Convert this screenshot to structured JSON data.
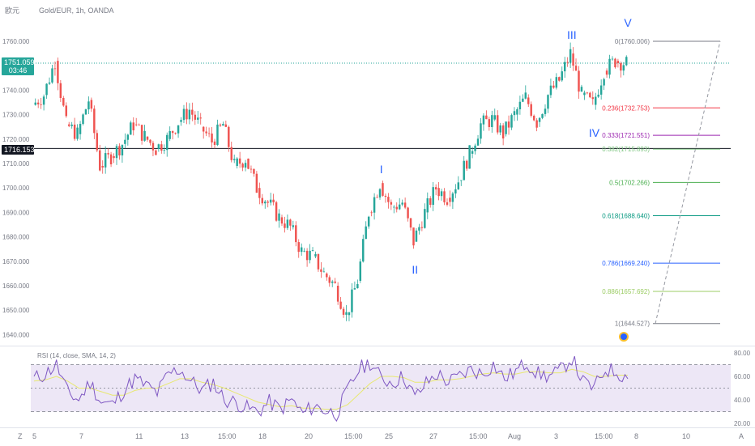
{
  "header": {
    "currency_label": "欧元",
    "symbol_text": "Gold/EUR, 1h, OANDA"
  },
  "colors": {
    "up": "#26a69a",
    "down": "#ef5350",
    "rsi_line": "#7e57c2",
    "rsi_ma": "#e8e870",
    "rsi_band": "#ede7f6",
    "current_price_bg": "#26a69a",
    "cursor_bg": "#131722"
  },
  "price_tags": {
    "current_price": "1751.059",
    "countdown": "03:46",
    "cursor_price": "1716.153"
  },
  "chart_data": [
    {
      "type": "candlestick",
      "title": "Gold/EUR, 1h, OANDA",
      "ylim": [
        1638,
        1770
      ],
      "y_ticks": [
        "1760.000",
        "1750.000",
        "1740.000",
        "1730.000",
        "1720.000",
        "1710.000",
        "1700.000",
        "1690.000",
        "1680.000",
        "1670.000",
        "1660.000",
        "1650.000",
        "1640.000"
      ],
      "x_ticks": [
        "5",
        "7",
        "11",
        "13",
        "15:00",
        "18",
        "20",
        "15:00",
        "25",
        "27",
        "15:00",
        "Aug",
        "3",
        "15:00",
        "8",
        "10"
      ],
      "series": [
        {
          "name": "close",
          "values": [
            1734,
            1738,
            1752,
            1726,
            1722,
            1736,
            1709,
            1713,
            1718,
            1726,
            1721,
            1716,
            1720,
            1727,
            1732,
            1725,
            1719,
            1726,
            1709,
            1712,
            1700,
            1694,
            1688,
            1684,
            1674,
            1672,
            1665,
            1660,
            1648,
            1662,
            1690,
            1702,
            1692,
            1694,
            1678,
            1690,
            1700,
            1696,
            1703,
            1714,
            1726,
            1728,
            1722,
            1730,
            1737,
            1727,
            1738,
            1744,
            1755,
            1738,
            1734,
            1748,
            1752,
            1751
          ]
        }
      ],
      "horizontal_lines": [
        {
          "label": "1716.153",
          "value": 1716.153
        }
      ],
      "wave_labels": [
        {
          "text": "I",
          "x_index": 31,
          "value": 1706
        },
        {
          "text": "II",
          "x_index": 34,
          "value": 1665
        },
        {
          "text": "III",
          "x_index": 48,
          "value": 1761
        },
        {
          "text": "IV",
          "x_index": 50,
          "value": 1721
        },
        {
          "text": "V",
          "x_index": 53,
          "value": 1766
        }
      ],
      "fibonacci": [
        {
          "label": "0(1760.006)",
          "value": 1760.006,
          "color": "#787b86"
        },
        {
          "label": "0.236(1732.753)",
          "value": 1732.753,
          "color": "#f23645"
        },
        {
          "label": "0.333(1721.551)",
          "value": 1721.551,
          "color": "#9c27b0"
        },
        {
          "label": "0.382(1715.893)",
          "value": 1715.893,
          "color": "#81c784"
        },
        {
          "label": "0.5(1702.266)",
          "value": 1702.266,
          "color": "#4caf50"
        },
        {
          "label": "0.618(1688.640)",
          "value": 1688.64,
          "color": "#089981"
        },
        {
          "label": "0.786(1669.240)",
          "value": 1669.24,
          "color": "#2962ff"
        },
        {
          "label": "0.886(1657.692)",
          "value": 1657.692,
          "color": "#9ccc65"
        },
        {
          "label": "1(1644.527)",
          "value": 1644.527,
          "color": "#787b86"
        }
      ]
    },
    {
      "type": "line",
      "title": "RSI (14, close, SMA, 14, 2)",
      "ylim": [
        20,
        80
      ],
      "y_ticks": [
        "80.00",
        "60.00",
        "40.00",
        "20.00"
      ],
      "band": [
        30,
        70
      ],
      "series": [
        {
          "name": "RSI",
          "values": [
            58,
            62,
            70,
            46,
            40,
            55,
            38,
            36,
            48,
            58,
            52,
            46,
            62,
            66,
            56,
            48,
            55,
            40,
            38,
            33,
            30,
            38,
            32,
            40,
            28,
            35,
            31,
            28,
            48,
            66,
            72,
            58,
            55,
            60,
            42,
            54,
            62,
            55,
            60,
            66,
            62,
            70,
            58,
            64,
            72,
            62,
            60,
            65,
            76,
            55,
            50,
            66,
            64,
            58
          ]
        },
        {
          "name": "RSI-based MA",
          "values": [
            56,
            57,
            60,
            56,
            50,
            50,
            47,
            44,
            44,
            48,
            50,
            50,
            54,
            58,
            58,
            55,
            53,
            50,
            46,
            42,
            38,
            36,
            34,
            35,
            33,
            33,
            32,
            32,
            36,
            45,
            54,
            60,
            60,
            59,
            55,
            55,
            57,
            57,
            58,
            60,
            62,
            63,
            62,
            62,
            64,
            64,
            63,
            63,
            66,
            64,
            60,
            60,
            61,
            61
          ]
        }
      ]
    }
  ],
  "bottom_toolbar": {
    "zoom_label": "Z",
    "auto_label": "A"
  }
}
